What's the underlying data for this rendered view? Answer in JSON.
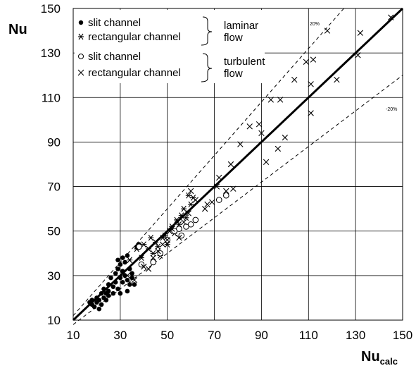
{
  "chart_data": {
    "type": "scatter",
    "xlabel": "Nu",
    "xlabel_sub": "calc",
    "ylabel": "Nu",
    "xlim": [
      10,
      150
    ],
    "ylim": [
      10,
      150
    ],
    "xticks": [
      10,
      30,
      50,
      70,
      90,
      110,
      130,
      150
    ],
    "yticks": [
      10,
      30,
      50,
      70,
      90,
      110,
      130,
      150
    ],
    "grid": true,
    "legend_position": "top-left",
    "legend_groups": [
      {
        "label_lines": [
          "laminar",
          "flow"
        ],
        "entries": [
          "slit channel",
          "rectangular channel"
        ]
      },
      {
        "label_lines": [
          "turbulent",
          "flow"
        ],
        "entries": [
          "slit channel",
          "rectangular channel"
        ]
      }
    ],
    "reference_lines": [
      {
        "kind": "identity",
        "style": "solid",
        "factor": 1.0
      },
      {
        "kind": "band",
        "style": "dashed",
        "factor": 1.2,
        "label": "20%"
      },
      {
        "kind": "band",
        "style": "dashed",
        "factor": 0.8,
        "label": "-20%"
      }
    ],
    "series": [
      {
        "name": "slit channel",
        "marker": "filled-circle",
        "regime": "laminar",
        "points": [
          [
            17,
            18
          ],
          [
            18,
            17
          ],
          [
            18,
            19
          ],
          [
            19,
            16
          ],
          [
            20,
            18
          ],
          [
            20,
            20
          ],
          [
            21,
            15
          ],
          [
            21,
            19
          ],
          [
            22,
            22
          ],
          [
            22,
            17
          ],
          [
            23,
            20
          ],
          [
            23,
            24
          ],
          [
            24,
            19
          ],
          [
            24,
            22
          ],
          [
            25,
            21
          ],
          [
            25,
            26
          ],
          [
            25,
            23
          ],
          [
            26,
            29
          ],
          [
            27,
            22
          ],
          [
            27,
            25
          ],
          [
            28,
            27
          ],
          [
            28,
            31
          ],
          [
            29,
            24
          ],
          [
            29,
            33
          ],
          [
            29,
            37
          ],
          [
            30,
            22
          ],
          [
            30,
            29
          ],
          [
            30,
            35
          ],
          [
            31,
            38
          ],
          [
            31,
            27
          ],
          [
            31,
            32
          ],
          [
            32,
            30
          ],
          [
            32,
            36
          ],
          [
            33,
            23
          ],
          [
            33,
            28
          ],
          [
            33,
            39
          ],
          [
            34,
            33
          ],
          [
            34,
            26
          ],
          [
            35,
            29
          ],
          [
            35,
            31
          ],
          [
            36,
            26
          ],
          [
            37,
            43
          ],
          [
            38,
            44
          ]
        ]
      },
      {
        "name": "rectangular channel",
        "marker": "asterisk",
        "regime": "laminar",
        "points": [
          [
            34,
            37
          ],
          [
            37,
            42
          ],
          [
            39,
            38
          ],
          [
            40,
            44
          ],
          [
            42,
            42
          ],
          [
            43,
            47
          ],
          [
            44,
            40
          ],
          [
            45,
            45
          ],
          [
            46,
            43
          ],
          [
            47,
            39
          ],
          [
            48,
            47
          ],
          [
            49,
            48
          ],
          [
            50,
            44
          ],
          [
            51,
            50
          ],
          [
            52,
            52
          ],
          [
            53,
            49
          ],
          [
            54,
            55
          ],
          [
            55,
            53
          ],
          [
            56,
            57
          ],
          [
            57,
            60
          ],
          [
            58,
            56
          ],
          [
            59,
            66
          ],
          [
            60,
            62
          ],
          [
            61,
            65
          ]
        ]
      },
      {
        "name": "slit channel",
        "marker": "open-circle",
        "regime": "turbulent",
        "points": [
          [
            38,
            43
          ],
          [
            39,
            35
          ],
          [
            44,
            36
          ],
          [
            47,
            40
          ],
          [
            50,
            46
          ],
          [
            53,
            50
          ],
          [
            55,
            51
          ],
          [
            56,
            48
          ],
          [
            58,
            52
          ],
          [
            60,
            53
          ],
          [
            62,
            55
          ],
          [
            72,
            64
          ],
          [
            75,
            66
          ]
        ]
      },
      {
        "name": "rectangular channel",
        "marker": "x-cross",
        "regime": "turbulent",
        "points": [
          [
            33,
            30
          ],
          [
            36,
            28
          ],
          [
            40,
            34
          ],
          [
            42,
            33
          ],
          [
            44,
            38
          ],
          [
            46,
            41
          ],
          [
            48,
            44
          ],
          [
            50,
            46
          ],
          [
            52,
            51
          ],
          [
            55,
            47
          ],
          [
            57,
            54
          ],
          [
            59,
            58
          ],
          [
            60,
            68
          ],
          [
            62,
            64
          ],
          [
            66,
            60
          ],
          [
            67,
            62
          ],
          [
            69,
            63
          ],
          [
            71,
            70
          ],
          [
            72,
            74
          ],
          [
            75,
            68
          ],
          [
            77,
            80
          ],
          [
            78,
            69
          ],
          [
            81,
            89
          ],
          [
            85,
            97
          ],
          [
            89,
            98
          ],
          [
            90,
            94
          ],
          [
            92,
            81
          ],
          [
            94,
            109
          ],
          [
            97,
            87
          ],
          [
            98,
            109
          ],
          [
            100,
            92
          ],
          [
            104,
            118
          ],
          [
            109,
            126
          ],
          [
            111,
            103
          ],
          [
            111,
            116
          ],
          [
            112,
            127
          ],
          [
            118,
            140
          ],
          [
            122,
            118
          ],
          [
            131,
            129
          ],
          [
            132,
            139
          ],
          [
            145,
            146
          ]
        ]
      }
    ]
  }
}
